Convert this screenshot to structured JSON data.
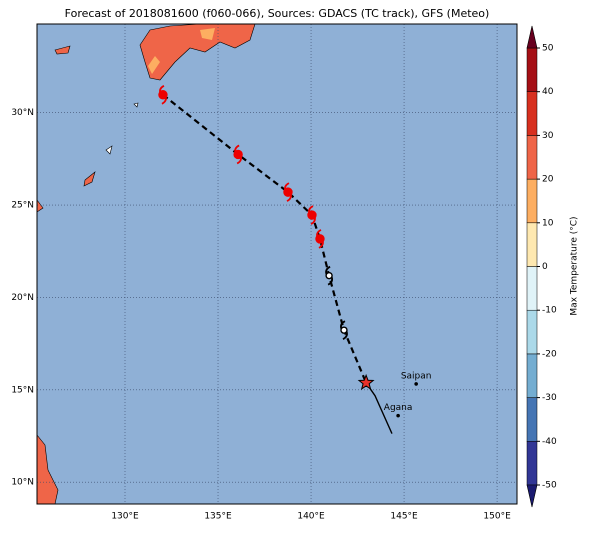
{
  "map": {
    "title": "Forecast of 2018081600 (f060-066), Sources: GDACS (TC track), GFS (Meteo)",
    "lonlim": [
      125.27,
      151.07
    ],
    "latlim": [
      8.82,
      34.8
    ],
    "lon_ticks": [
      {
        "value": 130,
        "label": "130°E"
      },
      {
        "value": 135,
        "label": "135°E"
      },
      {
        "value": 140,
        "label": "140°E"
      },
      {
        "value": 145,
        "label": "145°E"
      },
      {
        "value": 150,
        "label": "150°E"
      }
    ],
    "lat_ticks": [
      {
        "value": 10,
        "label": "10°N"
      },
      {
        "value": 15,
        "label": "15°N"
      },
      {
        "value": 20,
        "label": "20°N"
      },
      {
        "value": 25,
        "label": "25°N"
      },
      {
        "value": 30,
        "label": "30°N"
      }
    ],
    "ocean_color": "#8fb0d6",
    "track": [
      {
        "lon": 132.04,
        "lat": 30.97,
        "marker": "typhoon"
      },
      {
        "lon": 136.08,
        "lat": 27.74,
        "marker": "typhoon"
      },
      {
        "lon": 138.76,
        "lat": 25.7,
        "marker": "typhoon"
      },
      {
        "lon": 140.05,
        "lat": 24.46,
        "marker": "typhoon"
      },
      {
        "lon": 140.48,
        "lat": 23.17,
        "marker": "typhoon"
      },
      {
        "lon": 140.97,
        "lat": 21.18,
        "marker": "open"
      },
      {
        "lon": 141.77,
        "lat": 18.23,
        "marker": "open"
      },
      {
        "lon": 142.96,
        "lat": 15.38,
        "marker": "star"
      }
    ],
    "observed": [
      {
        "lon": 142.96,
        "lat": 15.38
      },
      {
        "lon": 143.44,
        "lat": 14.68
      },
      {
        "lon": 144.35,
        "lat": 12.63
      }
    ],
    "cities": [
      {
        "name": "Saipan",
        "lon": 145.65,
        "lat": 15.32
      },
      {
        "name": "Agana",
        "lon": 144.68,
        "lat": 13.6
      }
    ],
    "colorbar": {
      "label": "Max Temperature (°C)",
      "lim": [
        -50,
        50
      ],
      "ticks": [
        50,
        40,
        30,
        20,
        10,
        0,
        -10,
        -20,
        -30,
        -40,
        -50
      ],
      "colors": [
        "#313695",
        "#4575b4",
        "#74add1",
        "#abd9e9",
        "#e0f3f8",
        "#fee8b0",
        "#fdae61",
        "#ef6548",
        "#d7301f",
        "#a50f15"
      ],
      "over_color": "#67001f",
      "under_color": "#1a1a70"
    }
  }
}
